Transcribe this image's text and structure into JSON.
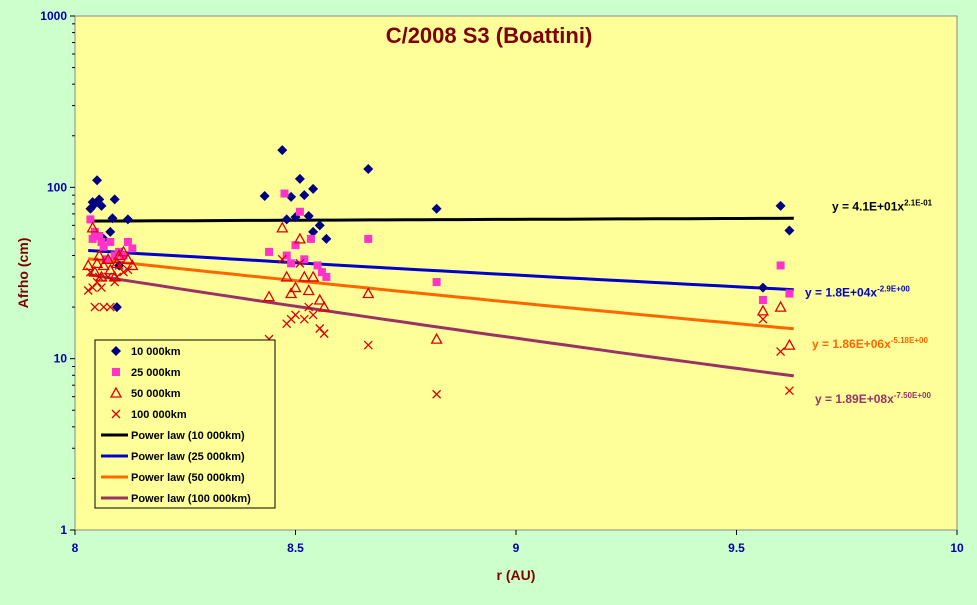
{
  "chart_data": {
    "type": "scatter",
    "title": "C/2008 S3 (Boattini)",
    "xlabel": "r (AU)",
    "ylabel": "Afrho (cm)",
    "xlim": [
      8,
      10
    ],
    "ylim": [
      1,
      1000
    ],
    "y_scale": "log",
    "grid": false,
    "legend_position": "bottom-left",
    "x_ticks": [
      "8",
      "8.5",
      "9",
      "9.5",
      "10"
    ],
    "y_ticks": [
      "1",
      "10",
      "100",
      "1000"
    ],
    "colors": {
      "page_background": "#ccffcc",
      "plot_background": "#ffff99",
      "title": "#800000",
      "axis_title": "#800000",
      "tick_label": "#0000aa"
    },
    "series": [
      {
        "name": "10 000km",
        "marker": "diamond",
        "color": "#000080",
        "points": [
          [
            8.035,
            75
          ],
          [
            8.04,
            82
          ],
          [
            8.045,
            80
          ],
          [
            8.05,
            110
          ],
          [
            8.055,
            85
          ],
          [
            8.06,
            78
          ],
          [
            8.065,
            50
          ],
          [
            8.08,
            55
          ],
          [
            8.085,
            66
          ],
          [
            8.09,
            85
          ],
          [
            8.095,
            20
          ],
          [
            8.1,
            35
          ],
          [
            8.12,
            65
          ],
          [
            8.43,
            89
          ],
          [
            8.47,
            165
          ],
          [
            8.48,
            65
          ],
          [
            8.49,
            88
          ],
          [
            8.5,
            67
          ],
          [
            8.51,
            112
          ],
          [
            8.52,
            90
          ],
          [
            8.53,
            68
          ],
          [
            8.54,
            55
          ],
          [
            8.54,
            98
          ],
          [
            8.555,
            60
          ],
          [
            8.57,
            50
          ],
          [
            8.665,
            128
          ],
          [
            8.82,
            75
          ],
          [
            9.56,
            26
          ],
          [
            9.6,
            78
          ],
          [
            9.62,
            56
          ]
        ]
      },
      {
        "name": "25 000km",
        "marker": "square",
        "color": "#ff33cc",
        "points": [
          [
            8.035,
            65
          ],
          [
            8.04,
            50
          ],
          [
            8.045,
            55
          ],
          [
            8.055,
            52
          ],
          [
            8.06,
            48
          ],
          [
            8.065,
            45
          ],
          [
            8.07,
            38
          ],
          [
            8.08,
            48
          ],
          [
            8.09,
            40
          ],
          [
            8.1,
            42
          ],
          [
            8.11,
            40
          ],
          [
            8.12,
            48
          ],
          [
            8.13,
            44
          ],
          [
            8.44,
            42
          ],
          [
            8.475,
            92
          ],
          [
            8.48,
            40
          ],
          [
            8.49,
            36
          ],
          [
            8.5,
            46
          ],
          [
            8.51,
            72
          ],
          [
            8.52,
            38
          ],
          [
            8.535,
            50
          ],
          [
            8.55,
            35
          ],
          [
            8.56,
            32
          ],
          [
            8.57,
            30
          ],
          [
            8.665,
            50
          ],
          [
            8.82,
            28
          ],
          [
            9.56,
            22
          ],
          [
            9.6,
            35
          ],
          [
            9.62,
            24
          ]
        ]
      },
      {
        "name": "50 000km",
        "marker": "triangle",
        "color": "#dd0000",
        "points": [
          [
            8.03,
            35
          ],
          [
            8.04,
            58
          ],
          [
            8.045,
            32
          ],
          [
            8.05,
            36
          ],
          [
            8.055,
            40
          ],
          [
            8.06,
            30
          ],
          [
            8.065,
            35
          ],
          [
            8.075,
            38
          ],
          [
            8.08,
            33
          ],
          [
            8.09,
            30
          ],
          [
            8.095,
            36
          ],
          [
            8.1,
            40
          ],
          [
            8.11,
            42
          ],
          [
            8.12,
            38
          ],
          [
            8.13,
            35
          ],
          [
            8.44,
            23
          ],
          [
            8.47,
            58
          ],
          [
            8.48,
            30
          ],
          [
            8.49,
            24
          ],
          [
            8.5,
            26
          ],
          [
            8.51,
            50
          ],
          [
            8.52,
            30
          ],
          [
            8.53,
            25
          ],
          [
            8.54,
            30
          ],
          [
            8.555,
            22
          ],
          [
            8.565,
            20
          ],
          [
            8.665,
            24
          ],
          [
            8.82,
            13
          ],
          [
            9.56,
            19
          ],
          [
            9.6,
            20
          ],
          [
            9.62,
            12
          ]
        ]
      },
      {
        "name": "100 000km",
        "marker": "x",
        "color": "#dd0000",
        "points": [
          [
            8.03,
            25
          ],
          [
            8.035,
            32
          ],
          [
            8.04,
            26
          ],
          [
            8.045,
            20
          ],
          [
            8.05,
            28
          ],
          [
            8.055,
            30
          ],
          [
            8.06,
            26
          ],
          [
            8.065,
            20
          ],
          [
            8.075,
            30
          ],
          [
            8.08,
            20
          ],
          [
            8.09,
            28
          ],
          [
            8.095,
            30
          ],
          [
            8.1,
            35
          ],
          [
            8.11,
            32
          ],
          [
            8.12,
            33
          ],
          [
            8.44,
            13
          ],
          [
            8.47,
            38
          ],
          [
            8.48,
            16
          ],
          [
            8.49,
            17
          ],
          [
            8.5,
            18
          ],
          [
            8.51,
            36
          ],
          [
            8.52,
            17
          ],
          [
            8.53,
            20
          ],
          [
            8.54,
            18
          ],
          [
            8.555,
            15
          ],
          [
            8.565,
            14
          ],
          [
            8.665,
            12
          ],
          [
            8.82,
            6.2
          ],
          [
            9.56,
            17
          ],
          [
            9.6,
            11
          ],
          [
            9.62,
            6.5
          ]
        ]
      }
    ],
    "trendlines": [
      {
        "name": "Power law (10 000km)",
        "color": "#000000",
        "coef": 41.0,
        "exponent": 0.21,
        "x_range": [
          8.03,
          9.63
        ],
        "equation_main": "y = 4.1E+01x",
        "equation_exp": "2.1E-01"
      },
      {
        "name": "Power law (25 000km)",
        "color": "#0000cc",
        "coef": 18000,
        "exponent": -2.9,
        "x_range": [
          8.03,
          9.63
        ],
        "equation_main": "y = 1.8E+04x",
        "equation_exp": "-2.9E+00"
      },
      {
        "name": "Power law (50 000km)",
        "color": "#ff6600",
        "coef": 1860000,
        "exponent": -5.18,
        "x_range": [
          8.03,
          9.63
        ],
        "equation_main": "y = 1.86E+06x",
        "equation_exp": "-5.18E+00"
      },
      {
        "name": "Power law (100 000km)",
        "color": "#993366",
        "coef": 189000000,
        "exponent": -7.5,
        "x_range": [
          8.03,
          9.63
        ],
        "equation_main": "y = 1.89E+08x",
        "equation_exp": "-7.50E+00"
      }
    ]
  }
}
